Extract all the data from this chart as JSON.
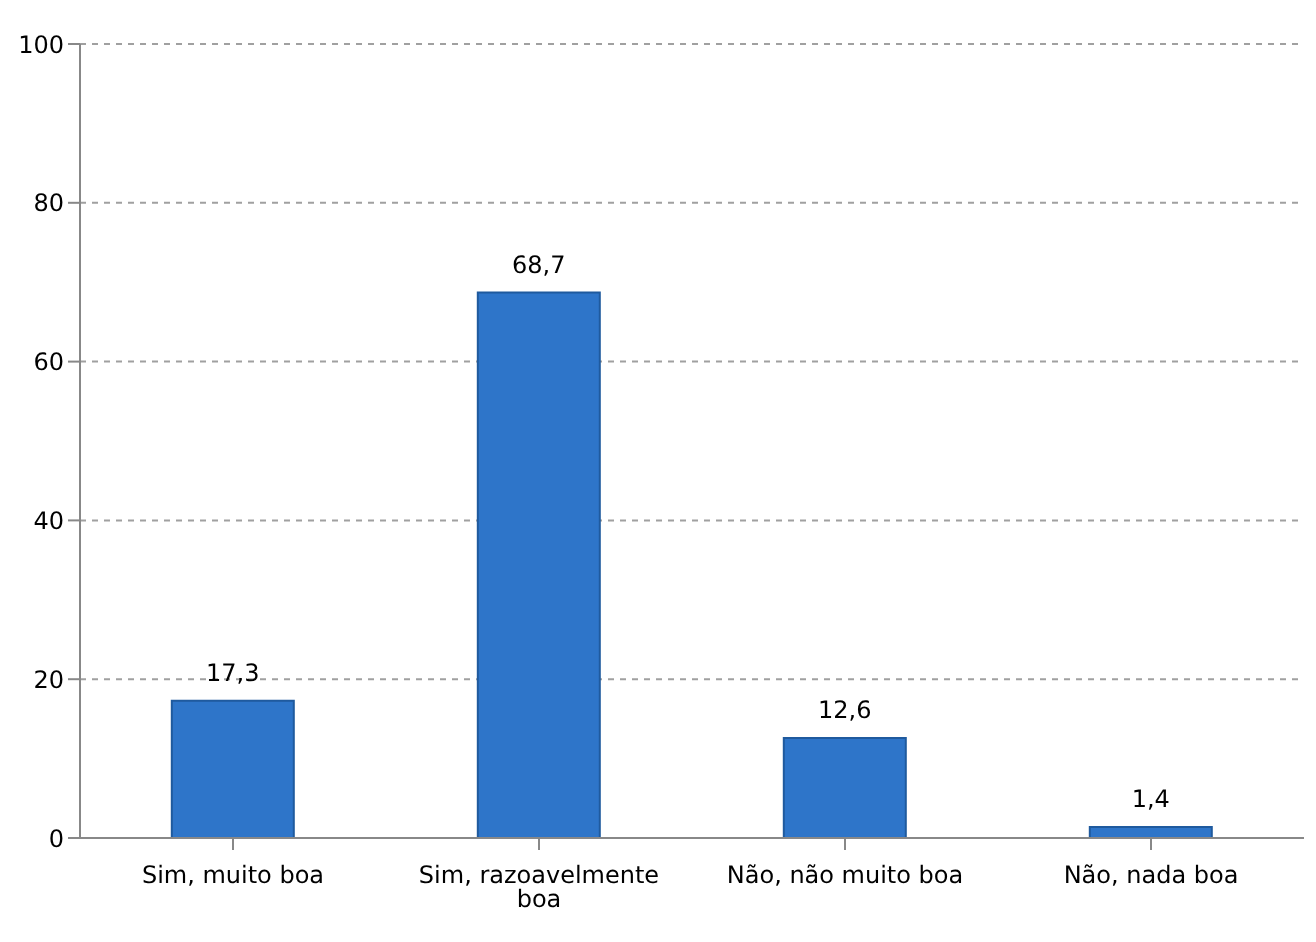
{
  "chart_data": {
    "type": "bar",
    "categories": [
      "Sim, muito boa",
      "Sim, razoavelmente boa",
      "Não, não muito boa",
      "Não, nada boa"
    ],
    "values": [
      17.3,
      68.7,
      12.6,
      1.4
    ],
    "value_labels": [
      "17,3",
      "68,7",
      "12,6",
      "1,4"
    ],
    "color": "#2e75c9",
    "ylim": [
      0,
      100
    ],
    "yticks": [
      0,
      20,
      40,
      60,
      80,
      100
    ],
    "grid": "y"
  }
}
